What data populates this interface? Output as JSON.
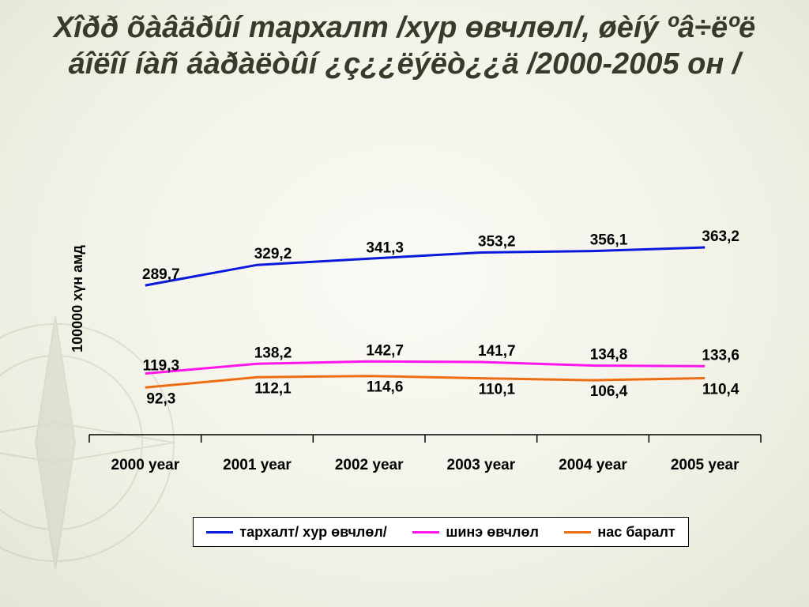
{
  "title": "Xîðð õàâäðûí  тархалт /хур өвчлөл/, øèíý ºâ÷ëºë áîëîí íàñ áàðàëòûí ¿ç¿¿ëýëò¿¿ä /2000-2005 он /",
  "colors": {
    "series1": "#0a1adc",
    "series2": "#ff16ef",
    "series3": "#ef6d12",
    "axis": "#000000"
  },
  "chart_data": {
    "type": "line",
    "title": "Xîðð õàâäðûí  тархалт /хур өвчлөл/, øèíý ºâ÷ëºë áîëîí íàñ áàðàëòûí ¿ç¿¿ëýëò¿¿ä /2000-2005 он /",
    "xlabel": "",
    "ylabel": "100000  хүн амд",
    "categories": [
      "2000 year",
      "2001 year",
      "2002 year",
      "2003 year",
      "2004 year",
      "2005 year"
    ],
    "series": [
      {
        "name": "тархалт/ хур өвчлөл/",
        "values": [
          289.7,
          329.2,
          341.3,
          353.2,
          356.1,
          363.2
        ],
        "labels": [
          "289,7",
          "329,2",
          "341,3",
          "353,2",
          "356,1",
          "363,2"
        ]
      },
      {
        "name": "шинэ өвчлөл",
        "values": [
          119.3,
          138.2,
          142.7,
          141.7,
          134.8,
          133.6
        ],
        "labels": [
          "119,3",
          "138,2",
          "142,7",
          "141,7",
          "134,8",
          "133,6"
        ]
      },
      {
        "name": "нас баралт",
        "values": [
          92.3,
          112.1,
          114.6,
          110.1,
          106.4,
          110.4
        ],
        "labels": [
          "92,3",
          "112,1",
          "114,6",
          "110,1",
          "106,4",
          "110,4"
        ]
      }
    ],
    "grid": false,
    "legend_position": "bottom"
  }
}
